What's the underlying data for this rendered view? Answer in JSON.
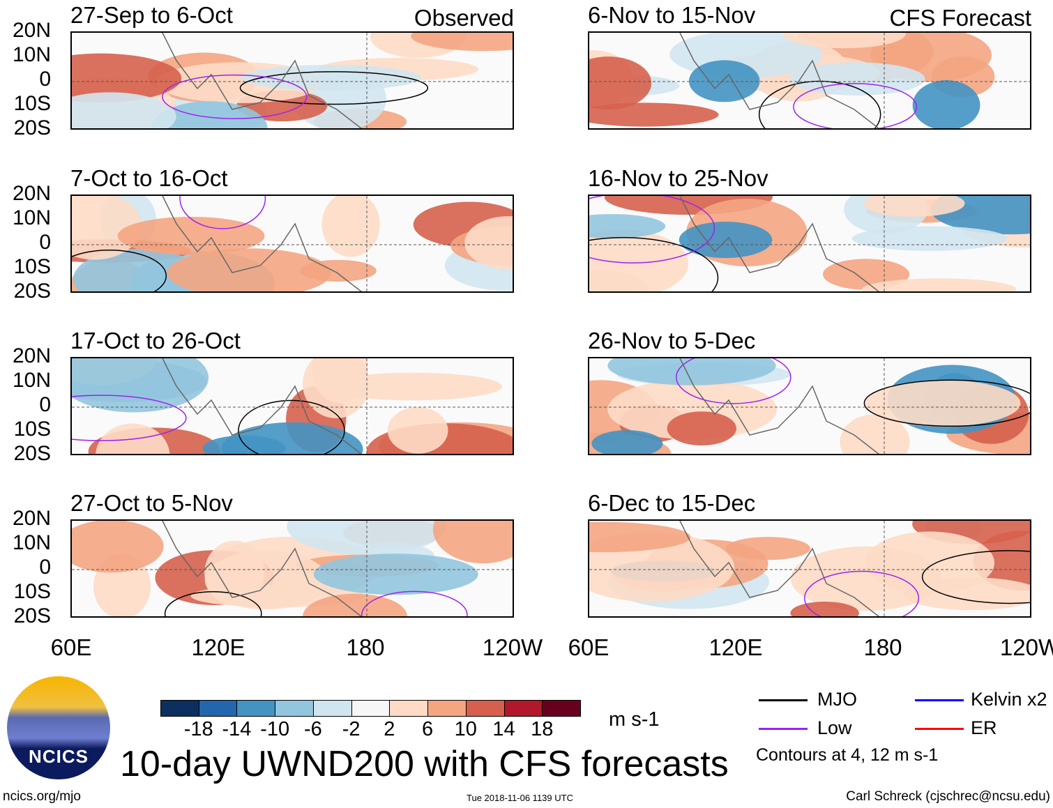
{
  "panels": [
    {
      "title": "27-Sep to 6-Oct",
      "corner": "Observed"
    },
    {
      "title": "6-Nov to 15-Nov",
      "corner": "CFS Forecast"
    },
    {
      "title": "7-Oct to 16-Oct"
    },
    {
      "title": "16-Nov to 25-Nov"
    },
    {
      "title": "17-Oct to 26-Oct"
    },
    {
      "title": "26-Nov to 5-Dec"
    },
    {
      "title": "27-Oct to 5-Nov"
    },
    {
      "title": "6-Dec to 15-Dec"
    }
  ],
  "lat_labels": [
    "20N",
    "10N",
    "0",
    "10S",
    "20S"
  ],
  "lon_labels": [
    "60E",
    "120E",
    "180",
    "120W"
  ],
  "colorbar": {
    "colors": [
      "#0b2f5e",
      "#2266ad",
      "#4393c3",
      "#92c5de",
      "#d1e5f0",
      "#f7f7f7",
      "#fddbc7",
      "#f4a582",
      "#d6604d",
      "#b2182b",
      "#67001f"
    ],
    "labels": [
      "-18",
      "-14",
      "-10",
      "-6",
      "-2",
      "2",
      "6",
      "10",
      "14",
      "18"
    ],
    "units": "m s-1"
  },
  "legend": {
    "items": [
      {
        "label": "MJO",
        "color": "#000000"
      },
      {
        "label": "Kelvin x2",
        "color": "#0000ff"
      },
      {
        "label": "Low",
        "color": "#a020f0"
      },
      {
        "label": "ER",
        "color": "#ff0000"
      }
    ],
    "contours": "Contours at 4, 12 m s-1"
  },
  "title": "10-day UWND200 with CFS forecasts",
  "logo_text": "NCICS",
  "footer": {
    "left": "ncics.org/mjo",
    "center": "Tue 2018-11-06 1139 UTC",
    "right": "Carl Schreck (cjschrec@ncsu.edu)"
  }
}
